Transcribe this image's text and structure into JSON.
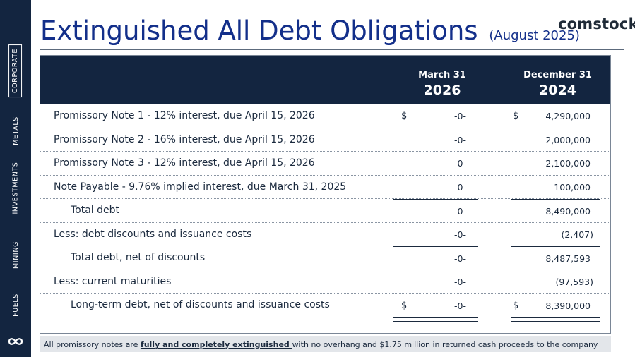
{
  "sidebar": {
    "items": [
      {
        "label": "CORPORATE",
        "active": true
      },
      {
        "label": "METALS",
        "active": false
      },
      {
        "label": "INVESTMENTS",
        "active": false
      },
      {
        "label": "MINING",
        "active": false
      },
      {
        "label": "FUELS",
        "active": false
      }
    ],
    "logo_icon": "infinity-loop-icon"
  },
  "header": {
    "title": "Extinguished All Debt Obligations",
    "subtitle": "(August 2025)",
    "brand": "comstock"
  },
  "table": {
    "columns": [
      {
        "month": "March 31",
        "year": "2026"
      },
      {
        "month": "December 31",
        "year": "2024"
      }
    ],
    "rows": [
      {
        "label": "Promissory Note 1 - 12% interest, due April 15, 2026",
        "c1_currency": "$",
        "c1_value": "-0-",
        "c2_currency": "$",
        "c2_value": "4,290,000"
      },
      {
        "label": "Promissory Note 2 - 16% interest, due April 15, 2026",
        "c1_currency": "",
        "c1_value": "-0-",
        "c2_currency": "",
        "c2_value": "2,000,000"
      },
      {
        "label": "Promissory Note 3 - 12% interest, due April 15, 2026",
        "c1_currency": "",
        "c1_value": "-0-",
        "c2_currency": "",
        "c2_value": "2,100,000"
      },
      {
        "label": "Note Payable - 9.76% implied interest, due March 31, 2025",
        "c1_currency": "",
        "c1_value": "-0-",
        "c2_currency": "",
        "c2_value": "100,000"
      },
      {
        "label": "Total debt",
        "c1_currency": "",
        "c1_value": "-0-",
        "c2_currency": "",
        "c2_value": "8,490,000"
      },
      {
        "label": "Less: debt discounts and issuance costs",
        "c1_currency": "",
        "c1_value": "-0-",
        "c2_currency": "",
        "c2_value": "(2,407)"
      },
      {
        "label": "Total debt, net of discounts",
        "c1_currency": "",
        "c1_value": "-0-",
        "c2_currency": "",
        "c2_value": "8,487,593"
      },
      {
        "label": "Less: current maturities",
        "c1_currency": "",
        "c1_value": "-0-",
        "c2_currency": "",
        "c2_value": "(97,593)"
      },
      {
        "label": "Long-term debt, net of discounts and issuance costs",
        "c1_currency": "$",
        "c1_value": "-0-",
        "c2_currency": "$",
        "c2_value": "8,390,000"
      }
    ]
  },
  "footnote": {
    "prefix": "All promissory notes are ",
    "emphasis": "fully and completely extinguished ",
    "suffix": "with no overhang and $1.75 million in returned cash proceeds to the company"
  },
  "colors": {
    "navy": "#132540",
    "title_blue": "#132f8a",
    "footnote_bg": "#e3e6ea"
  }
}
